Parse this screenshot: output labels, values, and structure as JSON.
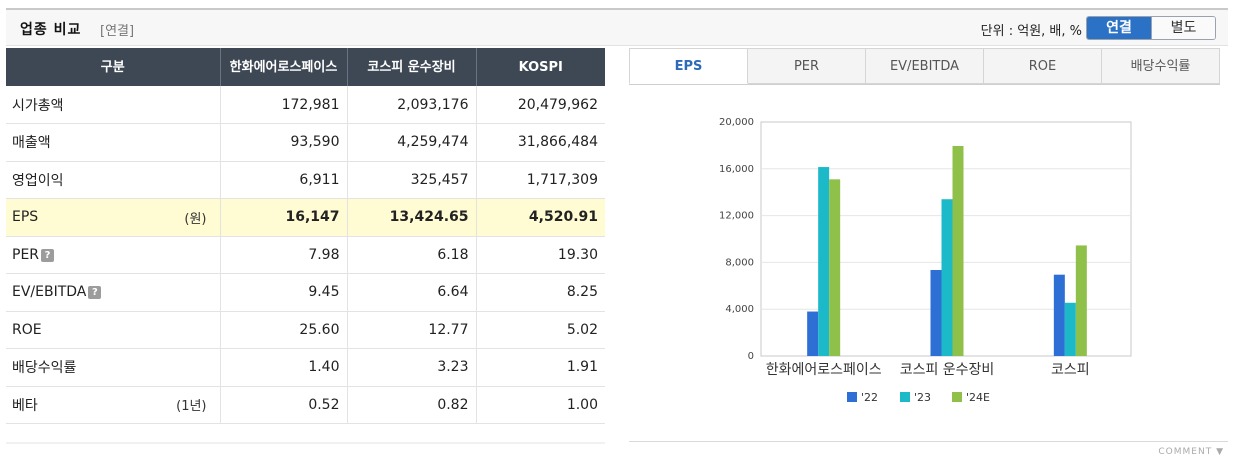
{
  "header": {
    "title": "업종 비교",
    "subtitle": "[연결]",
    "unit_label": "단위 : 억원, 배, %",
    "toggle": {
      "active": "연결",
      "inactive": "별도"
    }
  },
  "table": {
    "columns": [
      "구분",
      "한화에어로스페이스",
      "코스피 운수장비",
      "KOSPI"
    ],
    "rows": [
      {
        "label": "시가총액",
        "unit": "",
        "help": false,
        "values": [
          "172,981",
          "2,093,176",
          "20,479,962"
        ]
      },
      {
        "label": "매출액",
        "unit": "",
        "help": false,
        "values": [
          "93,590",
          "4,259,474",
          "31,866,484"
        ]
      },
      {
        "label": "영업이익",
        "unit": "",
        "help": false,
        "values": [
          "6,911",
          "325,457",
          "1,717,309"
        ]
      },
      {
        "label": "EPS",
        "unit": "(원)",
        "help": false,
        "highlight": true,
        "values": [
          "16,147",
          "13,424.65",
          "4,520.91"
        ]
      },
      {
        "label": "PER",
        "unit": "",
        "help": true,
        "values": [
          "7.98",
          "6.18",
          "19.30"
        ]
      },
      {
        "label": "EV/EBITDA",
        "unit": "",
        "help": true,
        "values": [
          "9.45",
          "6.64",
          "8.25"
        ]
      },
      {
        "label": "ROE",
        "unit": "",
        "help": false,
        "values": [
          "25.60",
          "12.77",
          "5.02"
        ]
      },
      {
        "label": "배당수익률",
        "unit": "",
        "help": false,
        "values": [
          "1.40",
          "3.23",
          "1.91"
        ]
      },
      {
        "label": "베타",
        "unit": "(1년)",
        "help": false,
        "values": [
          "0.52",
          "0.82",
          "1.00"
        ]
      }
    ],
    "help_glyph": "?"
  },
  "tabs": [
    {
      "label": "EPS",
      "active": true
    },
    {
      "label": "PER",
      "active": false
    },
    {
      "label": "EV/EBITDA",
      "active": false
    },
    {
      "label": "ROE",
      "active": false
    },
    {
      "label": "배당수익률",
      "active": false
    }
  ],
  "chart_data": {
    "type": "bar",
    "categories": [
      "한화에어로스페이스",
      "코스피 운수장비",
      "코스피"
    ],
    "series": [
      {
        "name": "'22",
        "color": "#2e6fd6",
        "values": [
          3800,
          7350,
          6950
        ]
      },
      {
        "name": "'23",
        "color": "#1cb9c8",
        "values": [
          16150,
          13400,
          4550
        ]
      },
      {
        "name": "'24E",
        "color": "#8fc04a",
        "values": [
          15100,
          17950,
          9450
        ]
      }
    ],
    "ylim": [
      0,
      20000
    ],
    "yticks": [
      "0",
      "4,000",
      "8,000",
      "12,000",
      "16,000",
      "20,000"
    ],
    "grid": true,
    "legend": "bottom"
  },
  "footer": {
    "comment": "COMMENT"
  }
}
